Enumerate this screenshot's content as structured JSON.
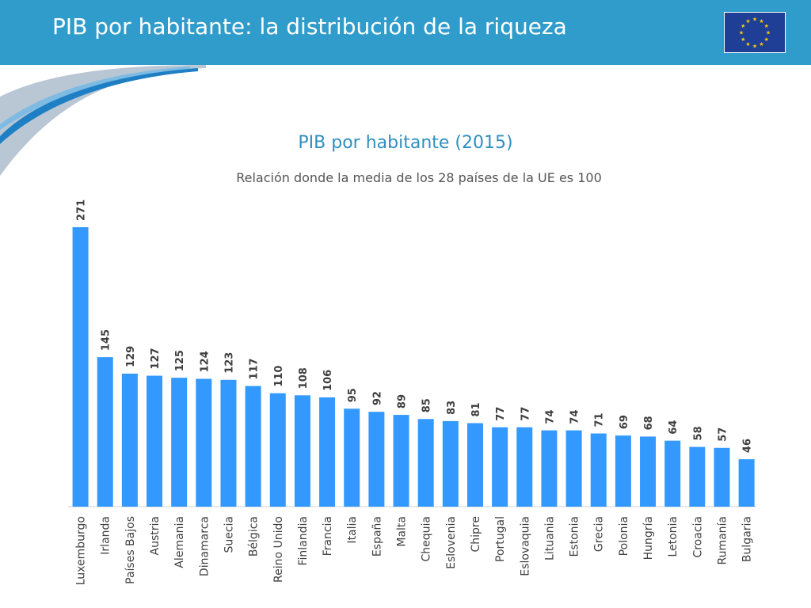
{
  "header": {
    "title": "PIB por habitante: la distribución de la riqueza",
    "flag_icon": "eu-flag-icon",
    "colors": {
      "background": "#2f9ccb",
      "flag": "#1f3f96",
      "stars": "#ffcc00"
    }
  },
  "chart_data": {
    "type": "bar",
    "title": "PIB por habitante (2015)",
    "subtitle": "Relación donde la media de los 28 países de la UE es 100",
    "categories": [
      "Luxemburgo",
      "Irlanda",
      "Países Bajos",
      "Austria",
      "Alemania",
      "Dinamarca",
      "Suecia",
      "Bélgica",
      "Reino Unido",
      "Finlandia",
      "Francia",
      "Italia",
      "España",
      "Malta",
      "Chequia",
      "Eslovenia",
      "Chipre",
      "Portugal",
      "Eslovaquia",
      "Lituania",
      "Estonia",
      "Grecia",
      "Polonia",
      "Hungría",
      "Letonia",
      "Croacia",
      "Rumanía",
      "Bulgaria"
    ],
    "values": [
      271,
      145,
      129,
      127,
      125,
      124,
      123,
      117,
      110,
      108,
      106,
      95,
      92,
      89,
      85,
      83,
      81,
      77,
      77,
      74,
      74,
      71,
      69,
      68,
      64,
      58,
      57,
      46
    ],
    "data_labels": [
      "271",
      "145",
      "129",
      "127",
      "125",
      "124",
      "123",
      "117",
      "110",
      "108",
      "106",
      "95",
      "92",
      "89",
      "85",
      "83",
      "81",
      "77",
      "77",
      "74",
      "74",
      "71",
      "69",
      "68",
      "64",
      "58",
      "57",
      "46"
    ],
    "xlabel": "",
    "ylabel": "",
    "ylim": [
      0,
      271
    ],
    "grid": false,
    "legend": "none",
    "bar_color": "#3399ff"
  }
}
